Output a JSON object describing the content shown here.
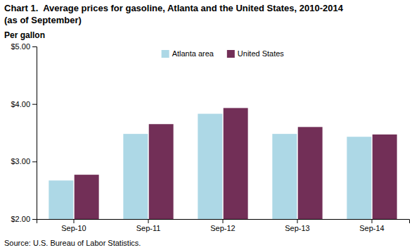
{
  "chart_data": {
    "type": "bar",
    "title": "Chart 1.  Average prices for gasoline, Atlanta and the United States, 2010-2014",
    "subtitle": "(as of September)",
    "ylabel": "Per gallon",
    "source": "Source: U.S. Bureau of Labor Statistics.",
    "categories": [
      "Sep-10",
      "Sep-11",
      "Sep-12",
      "Sep-13",
      "Sep-14"
    ],
    "series": [
      {
        "name": "Atlanta area",
        "color": "#ADD8E6",
        "values": [
          2.67,
          3.48,
          3.83,
          3.48,
          3.43
        ]
      },
      {
        "name": "United States",
        "color": "#722F57",
        "values": [
          2.77,
          3.65,
          3.93,
          3.6,
          3.47
        ]
      }
    ],
    "ylim": [
      2.0,
      5.0
    ],
    "yticks": [
      {
        "value": 2.0,
        "label": "$2.00"
      },
      {
        "value": 3.0,
        "label": "$3.00"
      },
      {
        "value": 4.0,
        "label": "$4.00"
      },
      {
        "value": 5.0,
        "label": "$5.00"
      }
    ],
    "grid": false,
    "legend": "top"
  }
}
